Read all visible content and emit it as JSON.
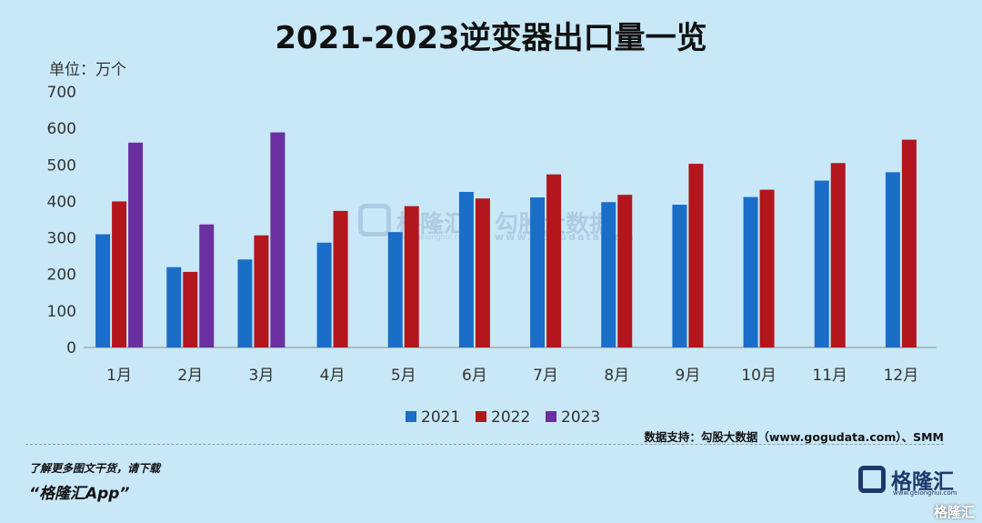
{
  "chart_data": {
    "type": "bar",
    "title": "2021-2023逆变器出口量一览",
    "unit_label": "单位：万个",
    "categories": [
      "1月",
      "2月",
      "3月",
      "4月",
      "5月",
      "6月",
      "7月",
      "8月",
      "9月",
      "10月",
      "11月",
      "12月"
    ],
    "ylim": [
      0,
      700
    ],
    "yticks": [
      0,
      100,
      200,
      300,
      400,
      500,
      600,
      700
    ],
    "grid": false,
    "legend_position": "bottom",
    "series": [
      {
        "name": "2021",
        "color": "#1a6ec8",
        "values": [
          310,
          220,
          241,
          287,
          316,
          426,
          411,
          398,
          391,
          412,
          457,
          480
        ]
      },
      {
        "name": "2022",
        "color": "#b3161d",
        "values": [
          400,
          207,
          307,
          374,
          387,
          408,
          474,
          418,
          503,
          432,
          505,
          569
        ]
      },
      {
        "name": "2023",
        "color": "#6a2fa0",
        "values": [
          561,
          337,
          589,
          null,
          null,
          null,
          null,
          null,
          null,
          null,
          null,
          null
        ]
      }
    ]
  },
  "watermark": {
    "brand_cn": "格隆汇",
    "brand_url": "www.gelonghui.com",
    "data_cn": "勾股大数据",
    "data_url": "www.gogudata.com"
  },
  "source": "数据支持：勾股大数据（www.gogudata.com）、SMM",
  "footer": {
    "line1": "了解更多图文干货，请下载",
    "line2": "“格隆汇App”"
  },
  "logo": {
    "name": "格隆汇",
    "url": "www.gelonghui.com"
  },
  "corner_mark": "格隆汇"
}
